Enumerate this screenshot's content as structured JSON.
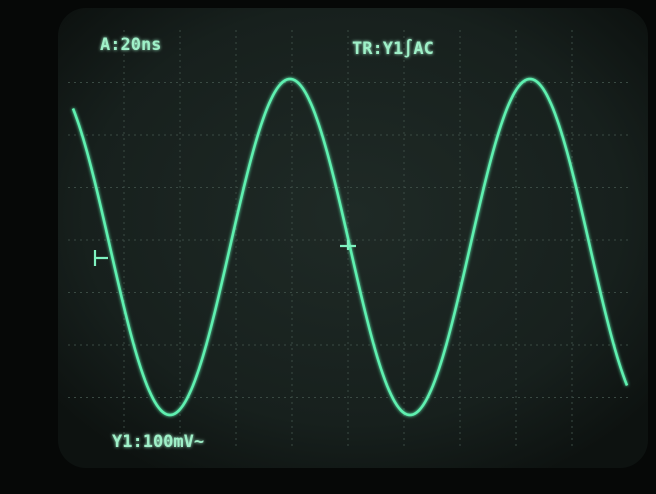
{
  "screen": {
    "timebase": "A:20ns",
    "trigger": "TR:Y1∫AC",
    "channel": "Y1:100mV~"
  }
}
